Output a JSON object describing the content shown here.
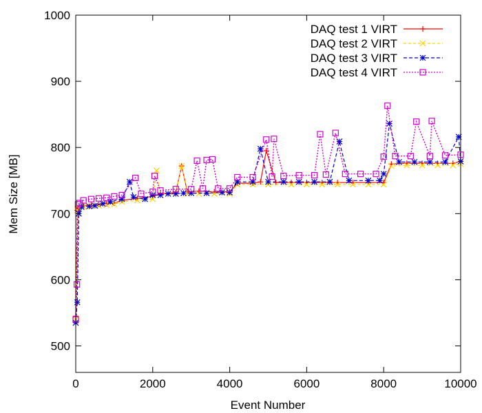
{
  "chart_data": {
    "type": "line",
    "title": "",
    "xlabel": "Event Number",
    "ylabel": "Mem Size [MB]",
    "xlim": [
      0,
      10000
    ],
    "ylim": [
      460,
      1000
    ],
    "xticks": [
      0,
      2000,
      4000,
      6000,
      8000,
      10000
    ],
    "yticks": [
      500,
      600,
      700,
      800,
      900,
      1000
    ],
    "grid": false,
    "legend_position": "top-right",
    "series": [
      {
        "name": "DAQ test 1 VIRT",
        "color": "#ff0000",
        "marker": "plus",
        "x": [
          0,
          40,
          80,
          200,
          400,
          600,
          800,
          1000,
          1200,
          1600,
          2000,
          2200,
          2600,
          2750,
          2900,
          3200,
          3600,
          4000,
          4200,
          4600,
          4800,
          4950,
          5200,
          5600,
          6000,
          6400,
          6800,
          7200,
          7600,
          8000,
          8200,
          8600,
          9000,
          9400,
          9800,
          10000
        ],
        "y": [
          545,
          705,
          708,
          712,
          713,
          714,
          715,
          716,
          720,
          723,
          726,
          730,
          732,
          772,
          733,
          734,
          733,
          733,
          746,
          746,
          748,
          795,
          747,
          747,
          747,
          747,
          747,
          747,
          747,
          747,
          775,
          776,
          776,
          776,
          776,
          779
        ]
      },
      {
        "name": "DAQ test 2 VIRT",
        "color": "#ffd000",
        "marker": "cross",
        "x": [
          0,
          40,
          80,
          200,
          400,
          600,
          800,
          1000,
          1200,
          1600,
          2000,
          2100,
          2200,
          2600,
          2750,
          2900,
          3200,
          3600,
          4000,
          4200,
          4600,
          5000,
          5600,
          6000,
          6400,
          6800,
          7200,
          7600,
          8000,
          8200,
          8600,
          9000,
          9400,
          9800,
          10000
        ],
        "y": [
          540,
          705,
          708,
          710,
          711,
          712,
          713,
          714,
          718,
          720,
          722,
          765,
          728,
          730,
          772,
          730,
          730,
          730,
          730,
          744,
          744,
          744,
          744,
          744,
          744,
          744,
          744,
          744,
          744,
          772,
          773,
          773,
          773,
          773,
          775
        ]
      },
      {
        "name": "DAQ test 3 VIRT",
        "color": "#0000cc",
        "marker": "star",
        "x": [
          0,
          40,
          80,
          150,
          350,
          500,
          700,
          900,
          1200,
          1400,
          1500,
          1800,
          2000,
          2200,
          2400,
          2600,
          2800,
          3000,
          3400,
          3800,
          4000,
          4200,
          4600,
          4800,
          5000,
          5400,
          5800,
          6200,
          6600,
          6850,
          7100,
          7600,
          7900,
          8000,
          8150,
          8400,
          8800,
          9200,
          9600,
          9950,
          10000
        ],
        "y": [
          535,
          566,
          700,
          710,
          711,
          712,
          715,
          718,
          722,
          748,
          725,
          722,
          728,
          728,
          730,
          730,
          731,
          731,
          731,
          732,
          732,
          748,
          748,
          798,
          748,
          748,
          748,
          748,
          748,
          809,
          750,
          750,
          750,
          760,
          836,
          778,
          778,
          778,
          778,
          816,
          779
        ]
      },
      {
        "name": "DAQ test 4 VIRT",
        "color": "#cc00cc",
        "marker": "square",
        "x": [
          0,
          30,
          60,
          100,
          200,
          400,
          600,
          800,
          1000,
          1200,
          1550,
          1700,
          2000,
          2050,
          2200,
          2600,
          3000,
          3150,
          3300,
          3400,
          3550,
          3700,
          4000,
          4200,
          4600,
          4950,
          5100,
          5150,
          5400,
          5800,
          6200,
          6350,
          6500,
          6750,
          7000,
          7400,
          7800,
          8000,
          8100,
          8300,
          8700,
          8850,
          9200,
          9250,
          9600,
          10000
        ],
        "y": [
          540,
          593,
          714,
          716,
          720,
          722,
          723,
          724,
          726,
          728,
          754,
          730,
          733,
          757,
          735,
          737,
          737,
          780,
          738,
          781,
          782,
          738,
          738,
          755,
          755,
          812,
          756,
          813,
          757,
          758,
          758,
          820,
          759,
          822,
          760,
          760,
          760,
          786,
          863,
          787,
          787,
          839,
          787,
          840,
          788,
          789
        ]
      }
    ]
  }
}
